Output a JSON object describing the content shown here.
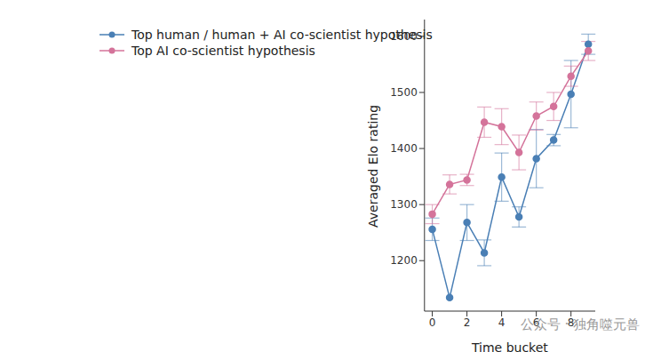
{
  "chart_data": {
    "type": "line",
    "x_label": "Time bucket",
    "y_label": "Averaged Elo rating",
    "x": [
      0,
      1,
      2,
      3,
      4,
      5,
      6,
      7,
      8,
      9
    ],
    "xlim": [
      -0.45,
      9.4
    ],
    "xticks": [
      0,
      2,
      4,
      6,
      8
    ],
    "ylim": [
      1110,
      1630
    ],
    "yticks": [
      1200,
      1300,
      1400,
      1500,
      1600
    ],
    "grid": false,
    "legend": "top-left",
    "marker": "circle",
    "series": [
      {
        "name": "Top human / human + AI co-scientist hypothesis",
        "color": "#4a7fb5",
        "values": [
          1256,
          1134,
          1268,
          1214,
          1349,
          1278,
          1382,
          1415,
          1497,
          1586
        ],
        "errors": [
          20,
          0,
          32,
          23,
          43,
          18,
          52,
          10,
          60,
          18
        ]
      },
      {
        "name": "Top AI co-scientist hypothesis",
        "color": "#d4739a",
        "values": [
          1283,
          1336,
          1344,
          1447,
          1439,
          1393,
          1458,
          1475,
          1529,
          1574
        ],
        "errors": [
          17,
          17,
          10,
          27,
          32,
          31,
          25,
          25,
          18,
          17
        ]
      }
    ],
    "annotations": [
      "公众号 · 独角噬元兽"
    ]
  }
}
